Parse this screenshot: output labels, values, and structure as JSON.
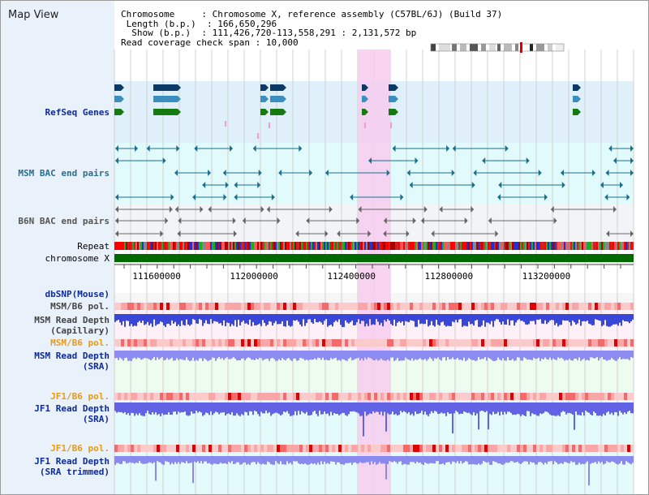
{
  "title": "Map View",
  "info": {
    "chromosome_label": "Chromosome",
    "chromosome_value": "Chromosome X, reference assembly (C57BL/6J) (Build 37)",
    "length_label": "Length (b.p.)",
    "length_value": "166,650,296",
    "show_label": "Show (b.p.)",
    "show_value": "111,426,720-113,558,291 : 2,131,572 bp",
    "coverage_label": "Read coverage check span",
    "coverage_value": "10,000"
  },
  "tracks": {
    "refseq": "RefSeq Genes",
    "msm_bac": "MSM BAC end pairs",
    "b6n_bac": "B6N BAC end pairs",
    "repeat": "Repeat",
    "chromosome": "chromosome X",
    "dbsnp": "dbSNP(Mouse)",
    "msm_pol": "MSM/B6 pol.",
    "msm_depth_cap_1": "MSM Read Depth",
    "msm_depth_cap_2": "(Capillary)",
    "msm_pol2": "MSM/B6 pol.",
    "msm_depth_sra_1": "MSM Read Depth",
    "msm_depth_sra_2": "(SRA)",
    "jf1_pol": "JF1/B6 pol.",
    "jf1_depth_1": "JF1 Read Depth",
    "jf1_depth_2": "(SRA)",
    "jf1_pol2": "JF1/B6 pol.",
    "jf1_trim_1": "JF1 Read Depth",
    "jf1_trim_2": "(SRA trimmed)"
  },
  "axis": {
    "start": 111426720,
    "end": 113558291,
    "ticks": [
      "111600000",
      "112000000",
      "112400000",
      "112800000",
      "113200000"
    ]
  },
  "colors": {
    "refseq_bg": "#dff0fa",
    "msm_bg": "#e1fbfc",
    "b6n_bg": "#f2f4f8",
    "highlight": "#f7cdef",
    "label_dark_blue": "#0d2a9a",
    "label_teal": "#2a6e8f",
    "label_gray": "#444444",
    "label_orange": "#e79a1a"
  }
}
